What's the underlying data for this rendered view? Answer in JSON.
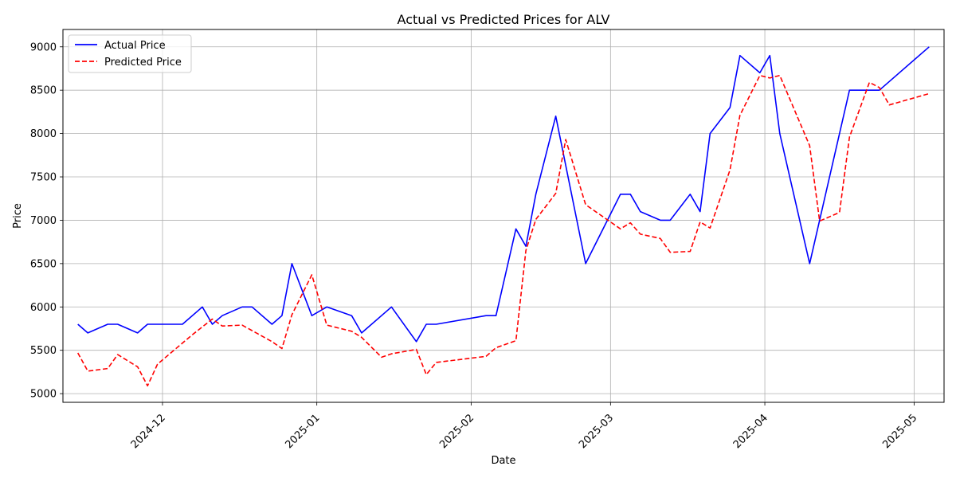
{
  "chart_data": {
    "type": "line",
    "title": "Actual vs Predicted Prices for ALV",
    "xlabel": "Date",
    "ylabel": "Price",
    "xlim": [
      "2024-11-11",
      "2025-05-07"
    ],
    "ylim": [
      4900,
      9200
    ],
    "grid": true,
    "legend_position": "top-left",
    "x_ticks": [
      "2024-12-01",
      "2025-01-01",
      "2025-02-01",
      "2025-03-01",
      "2025-04-01",
      "2025-05-01"
    ],
    "x_tick_labels": [
      "2024-12",
      "2025-01",
      "2025-02",
      "2025-03",
      "2025-04",
      "2025-05"
    ],
    "y_ticks": [
      5000,
      5500,
      6000,
      6500,
      7000,
      7500,
      8000,
      8500,
      9000
    ],
    "y_tick_labels": [
      "5000",
      "5500",
      "6000",
      "6500",
      "7000",
      "7500",
      "8000",
      "8500",
      "9000"
    ],
    "series": [
      {
        "name": "Actual Price",
        "color": "#0000ff",
        "style": "solid",
        "points": [
          [
            "2024-11-14",
            5800
          ],
          [
            "2024-11-16",
            5700
          ],
          [
            "2024-11-20",
            5800
          ],
          [
            "2024-11-22",
            5800
          ],
          [
            "2024-11-26",
            5700
          ],
          [
            "2024-11-28",
            5800
          ],
          [
            "2024-12-05",
            5800
          ],
          [
            "2024-12-09",
            6000
          ],
          [
            "2024-12-11",
            5800
          ],
          [
            "2024-12-13",
            5900
          ],
          [
            "2024-12-17",
            6000
          ],
          [
            "2024-12-19",
            6000
          ],
          [
            "2024-12-23",
            5800
          ],
          [
            "2024-12-25",
            5900
          ],
          [
            "2024-12-27",
            6500
          ],
          [
            "2024-12-31",
            5900
          ],
          [
            "2025-01-03",
            6000
          ],
          [
            "2025-01-08",
            5900
          ],
          [
            "2025-01-10",
            5700
          ],
          [
            "2025-01-16",
            6000
          ],
          [
            "2025-01-21",
            5600
          ],
          [
            "2025-01-23",
            5800
          ],
          [
            "2025-01-25",
            5800
          ],
          [
            "2025-02-04",
            5900
          ],
          [
            "2025-02-06",
            5900
          ],
          [
            "2025-02-10",
            6900
          ],
          [
            "2025-02-12",
            6700
          ],
          [
            "2025-02-14",
            7300
          ],
          [
            "2025-02-18",
            8200
          ],
          [
            "2025-02-24",
            6500
          ],
          [
            "2025-03-03",
            7300
          ],
          [
            "2025-03-05",
            7300
          ],
          [
            "2025-03-07",
            7100
          ],
          [
            "2025-03-11",
            7000
          ],
          [
            "2025-03-13",
            7000
          ],
          [
            "2025-03-17",
            7300
          ],
          [
            "2025-03-19",
            7100
          ],
          [
            "2025-03-21",
            8000
          ],
          [
            "2025-03-25",
            8300
          ],
          [
            "2025-03-27",
            8900
          ],
          [
            "2025-03-31",
            8700
          ],
          [
            "2025-04-02",
            8900
          ],
          [
            "2025-04-04",
            8000
          ],
          [
            "2025-04-10",
            6500
          ],
          [
            "2025-04-16",
            8000
          ],
          [
            "2025-04-18",
            8500
          ],
          [
            "2025-04-22",
            8500
          ],
          [
            "2025-04-24",
            8500
          ],
          [
            "2025-04-26",
            8600
          ],
          [
            "2025-05-04",
            9000
          ]
        ]
      },
      {
        "name": "Predicted Price",
        "color": "#ff0000",
        "style": "dashed",
        "points": [
          [
            "2024-11-14",
            5470
          ],
          [
            "2024-11-16",
            5260
          ],
          [
            "2024-11-20",
            5290
          ],
          [
            "2024-11-22",
            5450
          ],
          [
            "2024-11-26",
            5310
          ],
          [
            "2024-11-28",
            5090
          ],
          [
            "2024-11-30",
            5340
          ],
          [
            "2024-12-07",
            5680
          ],
          [
            "2024-12-11",
            5860
          ],
          [
            "2024-12-13",
            5780
          ],
          [
            "2024-12-17",
            5790
          ],
          [
            "2024-12-23",
            5600
          ],
          [
            "2024-12-25",
            5520
          ],
          [
            "2024-12-27",
            5910
          ],
          [
            "2024-12-31",
            6370
          ],
          [
            "2025-01-03",
            5790
          ],
          [
            "2025-01-08",
            5720
          ],
          [
            "2025-01-10",
            5650
          ],
          [
            "2025-01-14",
            5420
          ],
          [
            "2025-01-16",
            5460
          ],
          [
            "2025-01-21",
            5510
          ],
          [
            "2025-01-23",
            5220
          ],
          [
            "2025-01-25",
            5360
          ],
          [
            "2025-02-04",
            5430
          ],
          [
            "2025-02-06",
            5530
          ],
          [
            "2025-02-10",
            5610
          ],
          [
            "2025-02-12",
            6650
          ],
          [
            "2025-02-14",
            7010
          ],
          [
            "2025-02-18",
            7310
          ],
          [
            "2025-02-20",
            7930
          ],
          [
            "2025-02-24",
            7180
          ],
          [
            "2025-03-03",
            6900
          ],
          [
            "2025-03-05",
            6970
          ],
          [
            "2025-03-07",
            6840
          ],
          [
            "2025-03-11",
            6790
          ],
          [
            "2025-03-13",
            6630
          ],
          [
            "2025-03-17",
            6640
          ],
          [
            "2025-03-19",
            6980
          ],
          [
            "2025-03-21",
            6910
          ],
          [
            "2025-03-25",
            7580
          ],
          [
            "2025-03-27",
            8210
          ],
          [
            "2025-03-31",
            8670
          ],
          [
            "2025-04-02",
            8640
          ],
          [
            "2025-04-04",
            8670
          ],
          [
            "2025-04-10",
            7860
          ],
          [
            "2025-04-12",
            6990
          ],
          [
            "2025-04-16",
            7090
          ],
          [
            "2025-04-18",
            7960
          ],
          [
            "2025-04-22",
            8590
          ],
          [
            "2025-04-24",
            8530
          ],
          [
            "2025-04-26",
            8330
          ],
          [
            "2025-05-04",
            8460
          ]
        ]
      }
    ]
  }
}
